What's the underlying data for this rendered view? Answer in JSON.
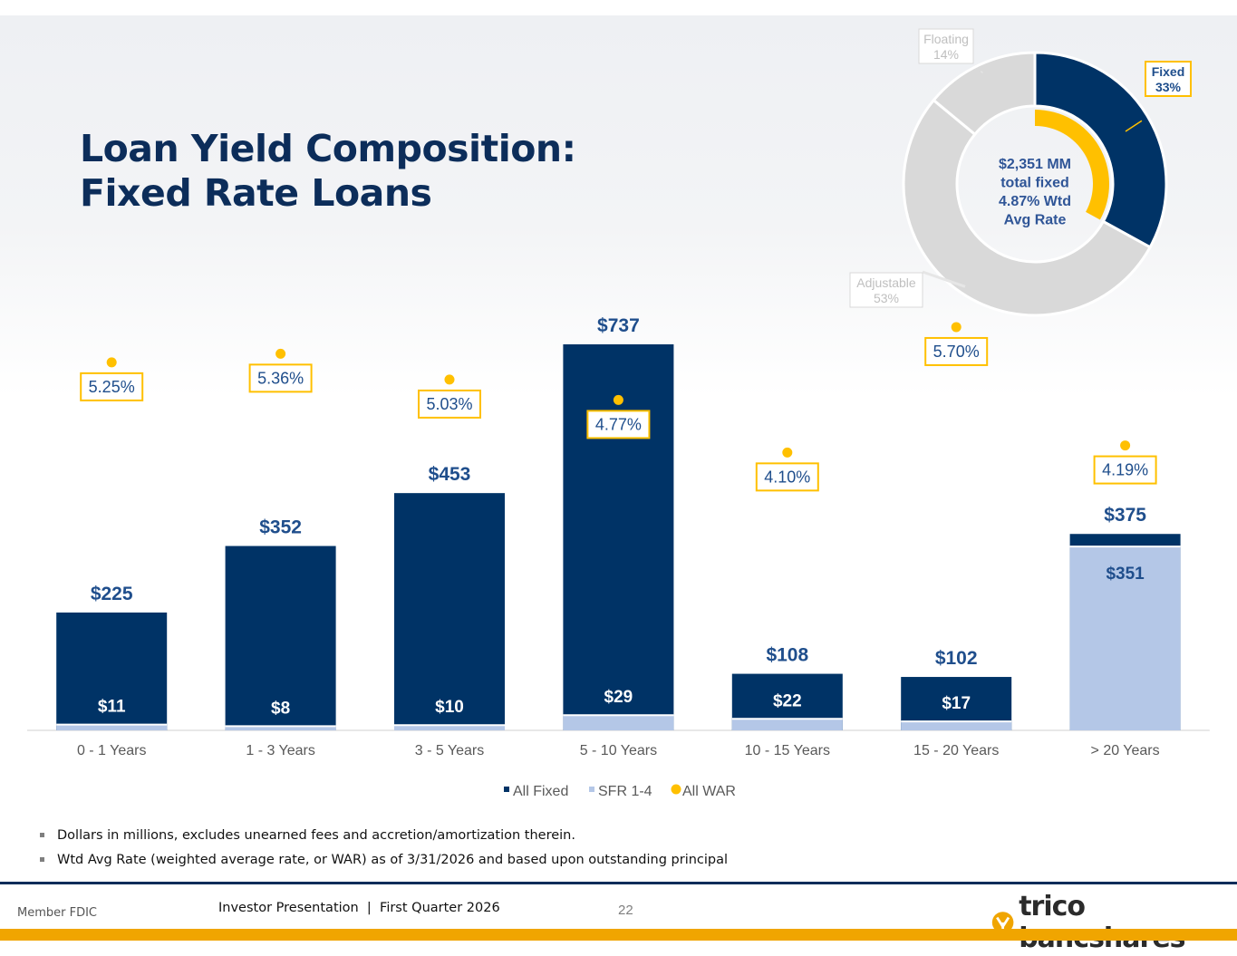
{
  "title": {
    "line1": "Loan Yield Composition:",
    "line2": "Fixed Rate Loans"
  },
  "colors": {
    "navy": "#003366",
    "light_blue": "#b4c7e7",
    "gold": "#ffc000",
    "gray": "#d9d9d9"
  },
  "chart_data": [
    {
      "type": "bar",
      "title": "",
      "categories": [
        "0 - 1 Years",
        "1 - 3 Years",
        "3 - 5 Years",
        "5 - 10 Years",
        "10 - 15 Years",
        "15 - 20 Years",
        "> 20 Years"
      ],
      "series": [
        {
          "name": "All Fixed",
          "values": [
            225,
            352,
            453,
            737,
            108,
            102,
            375
          ],
          "labels": [
            "$225",
            "$352",
            "$453",
            "$737",
            "$108",
            "$102",
            "$375"
          ]
        },
        {
          "name": "SFR 1-4",
          "values": [
            11,
            8,
            10,
            29,
            22,
            17,
            351
          ],
          "labels": [
            "$11",
            "$8",
            "$10",
            "$29",
            "$22",
            "$17",
            "$351"
          ]
        },
        {
          "name": "All WAR",
          "values": [
            5.25,
            5.36,
            5.03,
            4.77,
            4.1,
            5.7,
            4.19
          ],
          "labels": [
            "5.25%",
            "5.36%",
            "5.03%",
            "4.77%",
            "4.10%",
            "5.70%",
            "4.19%"
          ]
        }
      ],
      "ylim": [
        0,
        750
      ],
      "war_ylim": [
        0,
        6.5
      ],
      "legend": "bottom",
      "xlabel": "",
      "ylabel": ""
    },
    {
      "type": "pie",
      "title": "",
      "center_text": [
        "$2,351 MM",
        "total fixed",
        "4.87% Wtd",
        "Avg Rate"
      ],
      "slices": [
        {
          "label": "Fixed",
          "pct": 33,
          "pct_label": "33%"
        },
        {
          "label": "Adjustable",
          "pct": 53,
          "pct_label": "53%"
        },
        {
          "label": "Floating",
          "pct": 14,
          "pct_label": "14%"
        }
      ],
      "inner_ring_pct": 33
    }
  ],
  "notes": [
    "Dollars in millions, excludes unearned fees and accretion/amortization therein.",
    "Wtd Avg Rate (weighted average rate, or WAR) as of 3/31/2026 and based upon outstanding principal"
  ],
  "footer": {
    "member": "Member FDIC",
    "presentation": "Investor Presentation  |  First Quarter 2026",
    "page": "22",
    "logo": "trico bancshares"
  }
}
